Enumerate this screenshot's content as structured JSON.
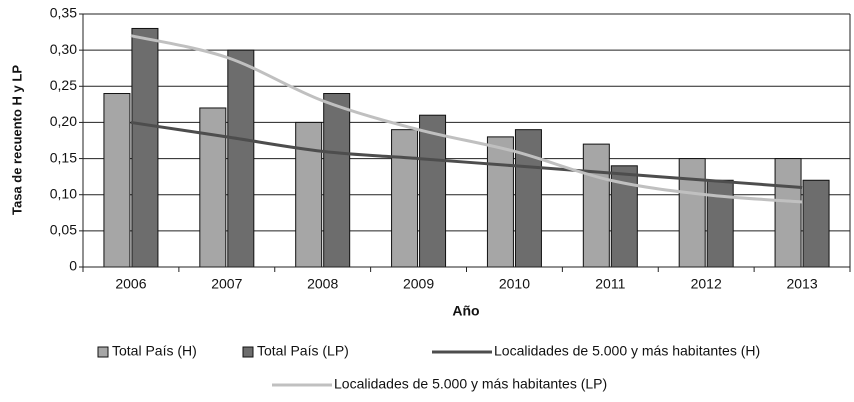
{
  "chart_data": {
    "type": "bar",
    "y_label": "Tasa de recuento H y LP",
    "x_label": "Año",
    "categories": [
      "2006",
      "2007",
      "2008",
      "2009",
      "2010",
      "2011",
      "2012",
      "2013"
    ],
    "series": [
      {
        "name": "Total País (H)",
        "type": "bar",
        "color": "#a6a6a6",
        "values": [
          0.24,
          0.22,
          0.2,
          0.19,
          0.18,
          0.17,
          0.15,
          0.15
        ]
      },
      {
        "name": "Total País (LP)",
        "type": "bar",
        "color": "#6d6d6d",
        "values": [
          0.33,
          0.3,
          0.24,
          0.21,
          0.19,
          0.14,
          0.12,
          0.12
        ]
      },
      {
        "name": "Localidades de 5.000 y más habitantes (H)",
        "type": "line",
        "color": "#4d4d4d",
        "values": [
          0.2,
          0.18,
          0.16,
          0.15,
          0.14,
          0.13,
          0.12,
          0.11
        ]
      },
      {
        "name": "Localidades de 5.000 y más habitantes (LP)",
        "type": "line",
        "color": "#c0c0c0",
        "values": [
          0.32,
          0.29,
          0.23,
          0.19,
          0.16,
          0.12,
          0.1,
          0.09
        ]
      }
    ],
    "ylim": [
      0,
      0.35
    ],
    "yticks": [
      0,
      {
        "value": 0.05,
        "label": "0,05"
      },
      {
        "value": 0.1,
        "label": "0,10"
      },
      {
        "value": 0.15,
        "label": "0,15"
      },
      {
        "value": 0.2,
        "label": "0,20"
      },
      {
        "value": 0.25,
        "label": "0,25"
      },
      {
        "value": 0.3,
        "label": "0,30"
      },
      {
        "value": 0.35,
        "label": "0,35"
      }
    ],
    "grid": true
  }
}
